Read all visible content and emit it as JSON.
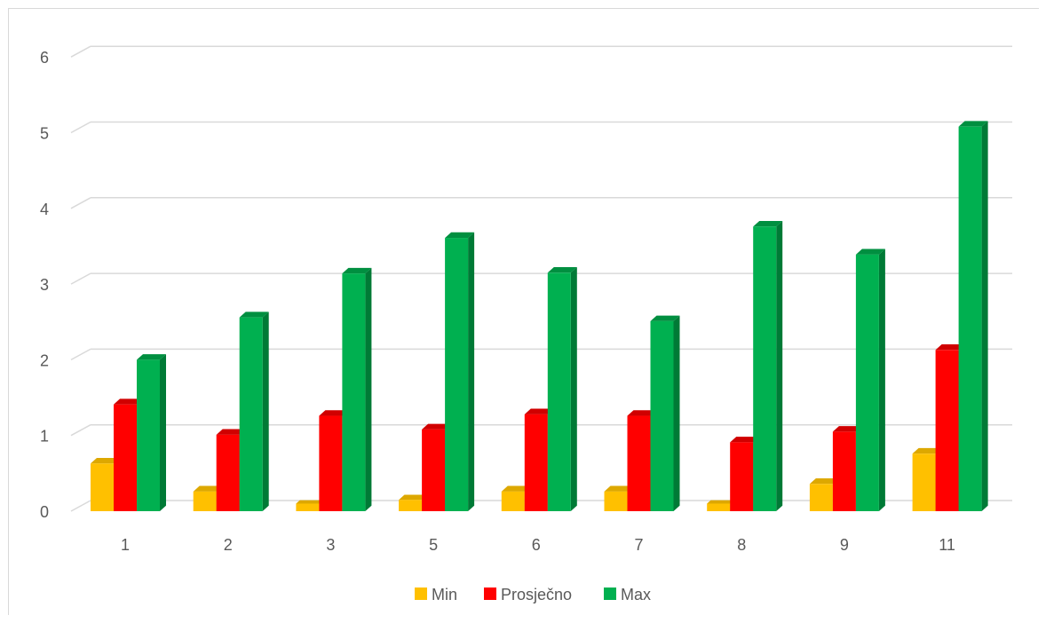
{
  "chart_data": {
    "type": "bar",
    "title": "",
    "xlabel": "",
    "ylabel": "",
    "categories": [
      "1",
      "2",
      "3",
      "5",
      "6",
      "7",
      "8",
      "9",
      "11"
    ],
    "ylim": [
      0,
      6
    ],
    "yticks": [
      "0",
      "1",
      "2",
      "3",
      "4",
      "5",
      "6"
    ],
    "grid": true,
    "legend_position": "bottom",
    "series": [
      {
        "name": "Min",
        "color": "#FFC000",
        "side_color": "#C99700",
        "top_color": "#DDA800",
        "values": [
          0.63,
          0.26,
          0.1,
          0.15,
          0.26,
          0.26,
          0.1,
          0.36,
          0.76
        ]
      },
      {
        "name": "Prosječno",
        "color": "#FF0000",
        "side_color": "#B20000",
        "top_color": "#D00000",
        "values": [
          1.41,
          1.01,
          1.26,
          1.08,
          1.28,
          1.26,
          0.91,
          1.05,
          2.13
        ]
      },
      {
        "name": "Max",
        "color": "#00B050",
        "side_color": "#007A36",
        "top_color": "#008F40",
        "values": [
          2.0,
          2.56,
          3.14,
          3.61,
          3.15,
          2.51,
          3.76,
          3.39,
          5.08
        ]
      }
    ]
  }
}
